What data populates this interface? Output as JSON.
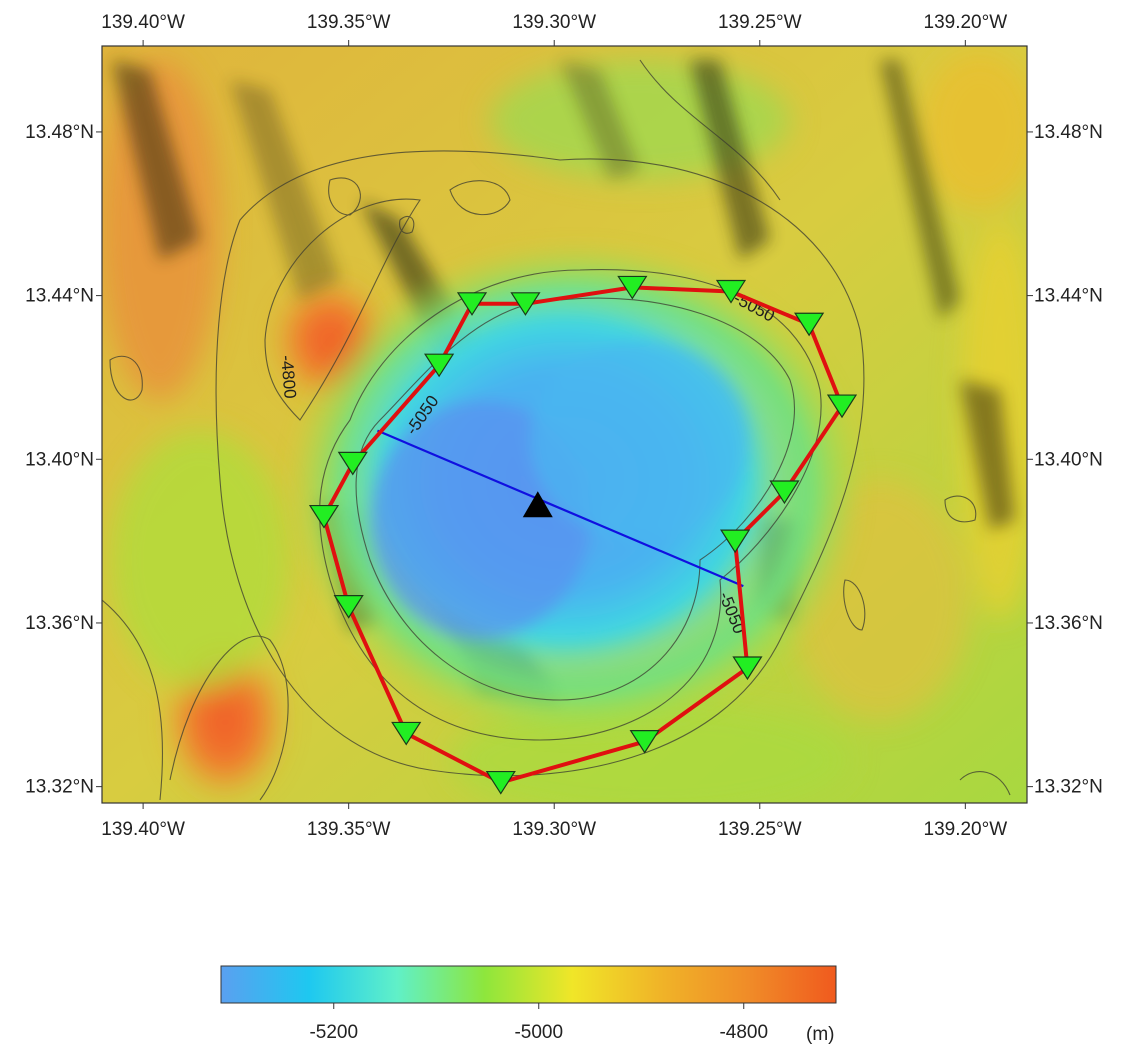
{
  "map": {
    "lon_min": -139.41,
    "lon_max": -139.185,
    "lat_min": 13.316,
    "lat_max": 13.501,
    "lon_ticks": [
      {
        "value": -139.4,
        "label": "139.40°W"
      },
      {
        "value": -139.35,
        "label": "139.35°W"
      },
      {
        "value": -139.3,
        "label": "139.30°W"
      },
      {
        "value": -139.25,
        "label": "139.25°W"
      },
      {
        "value": -139.2,
        "label": "139.20°W"
      }
    ],
    "lat_ticks": [
      {
        "value": 13.48,
        "label": "13.48°N"
      },
      {
        "value": 13.44,
        "label": "13.44°N"
      },
      {
        "value": 13.4,
        "label": "13.40°N"
      },
      {
        "value": 13.36,
        "label": "13.36°N"
      },
      {
        "value": 13.32,
        "label": "13.32°N"
      }
    ],
    "contour_labels": [
      {
        "text": "-4800",
        "lon": -139.366,
        "lat": 13.42,
        "rotate": 85
      },
      {
        "text": "-5050",
        "lon": -139.331,
        "lat": 13.41,
        "rotate": -55
      },
      {
        "text": "-5050",
        "lon": -139.252,
        "lat": 13.436,
        "rotate": 28
      },
      {
        "text": "-5050",
        "lon": -139.258,
        "lat": 13.362,
        "rotate": 68
      }
    ],
    "center_marker": {
      "lon": -139.304,
      "lat": 13.389,
      "symbol": "black-triangle"
    },
    "profile_line": {
      "start": {
        "lon": -139.343,
        "lat": 13.407
      },
      "end": {
        "lon": -139.254,
        "lat": 13.369
      },
      "color": "#1010e0"
    },
    "station_ring_color": "#e01010",
    "station_color": "#22ee22",
    "stations": [
      {
        "lon": -139.32,
        "lat": 13.438
      },
      {
        "lon": -139.307,
        "lat": 13.438
      },
      {
        "lon": -139.281,
        "lat": 13.442
      },
      {
        "lon": -139.257,
        "lat": 13.441
      },
      {
        "lon": -139.238,
        "lat": 13.433
      },
      {
        "lon": -139.23,
        "lat": 13.413
      },
      {
        "lon": -139.244,
        "lat": 13.392
      },
      {
        "lon": -139.256,
        "lat": 13.38
      },
      {
        "lon": -139.253,
        "lat": 13.349
      },
      {
        "lon": -139.278,
        "lat": 13.331
      },
      {
        "lon": -139.313,
        "lat": 13.321
      },
      {
        "lon": -139.336,
        "lat": 13.333
      },
      {
        "lon": -139.35,
        "lat": 13.364
      },
      {
        "lon": -139.356,
        "lat": 13.386
      },
      {
        "lon": -139.349,
        "lat": 13.399
      },
      {
        "lon": -139.328,
        "lat": 13.423
      }
    ]
  },
  "colorbar": {
    "ticks": [
      {
        "value": -5200,
        "label": "-5200"
      },
      {
        "value": -5000,
        "label": "-5000"
      },
      {
        "value": -4800,
        "label": "-4800"
      }
    ],
    "min": -5310,
    "max": -4710,
    "unit_label": "(m)",
    "colors": [
      "#5aa0f0",
      "#1ec8f0",
      "#60f0c8",
      "#8ee63c",
      "#f0e628",
      "#f0b428",
      "#f08c28",
      "#f05a1e"
    ]
  }
}
